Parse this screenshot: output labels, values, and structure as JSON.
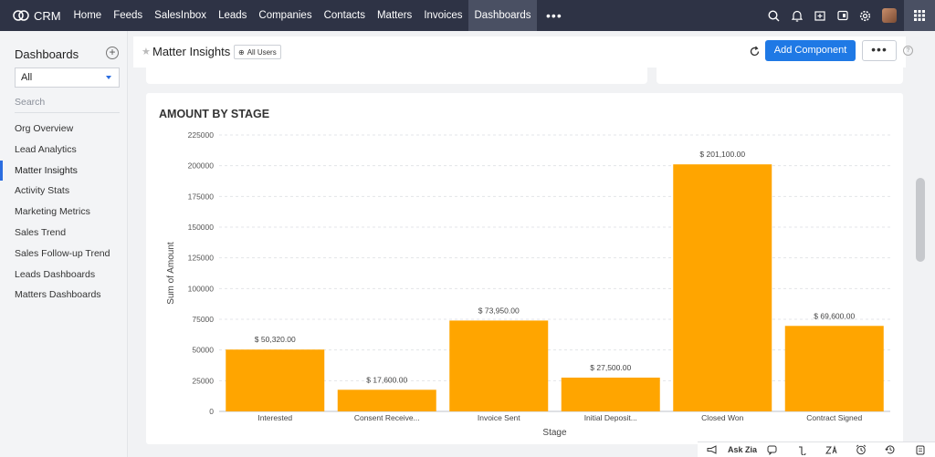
{
  "app": {
    "name": "CRM"
  },
  "nav": {
    "items": [
      "Home",
      "Feeds",
      "SalesInbox",
      "Leads",
      "Companies",
      "Contacts",
      "Matters",
      "Invoices",
      "Dashboards"
    ],
    "active": "Dashboards",
    "more": "•••"
  },
  "top_icons": [
    "search-icon",
    "bell-icon",
    "calendar-add-icon",
    "deal-icon",
    "settings-icon",
    "avatar",
    "apps-grid-icon"
  ],
  "sidebar": {
    "title": "Dashboards",
    "add": "+",
    "select_value": "All",
    "search_placeholder": "Search",
    "items": [
      "Org Overview",
      "Lead Analytics",
      "Matter Insights",
      "Activity Stats",
      "Marketing Metrics",
      "Sales Trend",
      "Sales Follow-up Trend",
      "Leads Dashboards",
      "Matters Dashboards"
    ],
    "active_item": "Matter Insights"
  },
  "header": {
    "title": "Matter Insights",
    "users_badge": "All Users",
    "add_component": "Add Component",
    "more": "•••",
    "help": "?"
  },
  "chart_data": {
    "type": "bar",
    "title": "AMOUNT BY STAGE",
    "xlabel": "Stage",
    "ylabel": "Sum of Amount",
    "categories": [
      "Interested",
      "Consent Receive...",
      "Invoice Sent",
      "Initial Deposit...",
      "Closed Won",
      "Contract Signed"
    ],
    "values": [
      50320,
      17600,
      73950,
      27500,
      201100,
      69600
    ],
    "data_labels": [
      "$ 50,320.00",
      "$ 17,600.00",
      "$ 73,950.00",
      "$ 27,500.00",
      "$ 201,100.00",
      "$ 69,600.00"
    ],
    "yticks": [
      "0",
      "25000",
      "50000",
      "75000",
      "100000",
      "125000",
      "150000",
      "175000",
      "200000",
      "225000"
    ],
    "ylim": [
      0,
      225000
    ],
    "grid": true,
    "bar_color": "#ffa500"
  },
  "bottom_bar": {
    "ask_zia": "Ask Zia",
    "icons": [
      "megaphone-icon",
      "ask-zia",
      "chat-icon",
      "bot-icon",
      "translate-icon",
      "alarm-icon",
      "history-icon",
      "notes-icon"
    ]
  }
}
